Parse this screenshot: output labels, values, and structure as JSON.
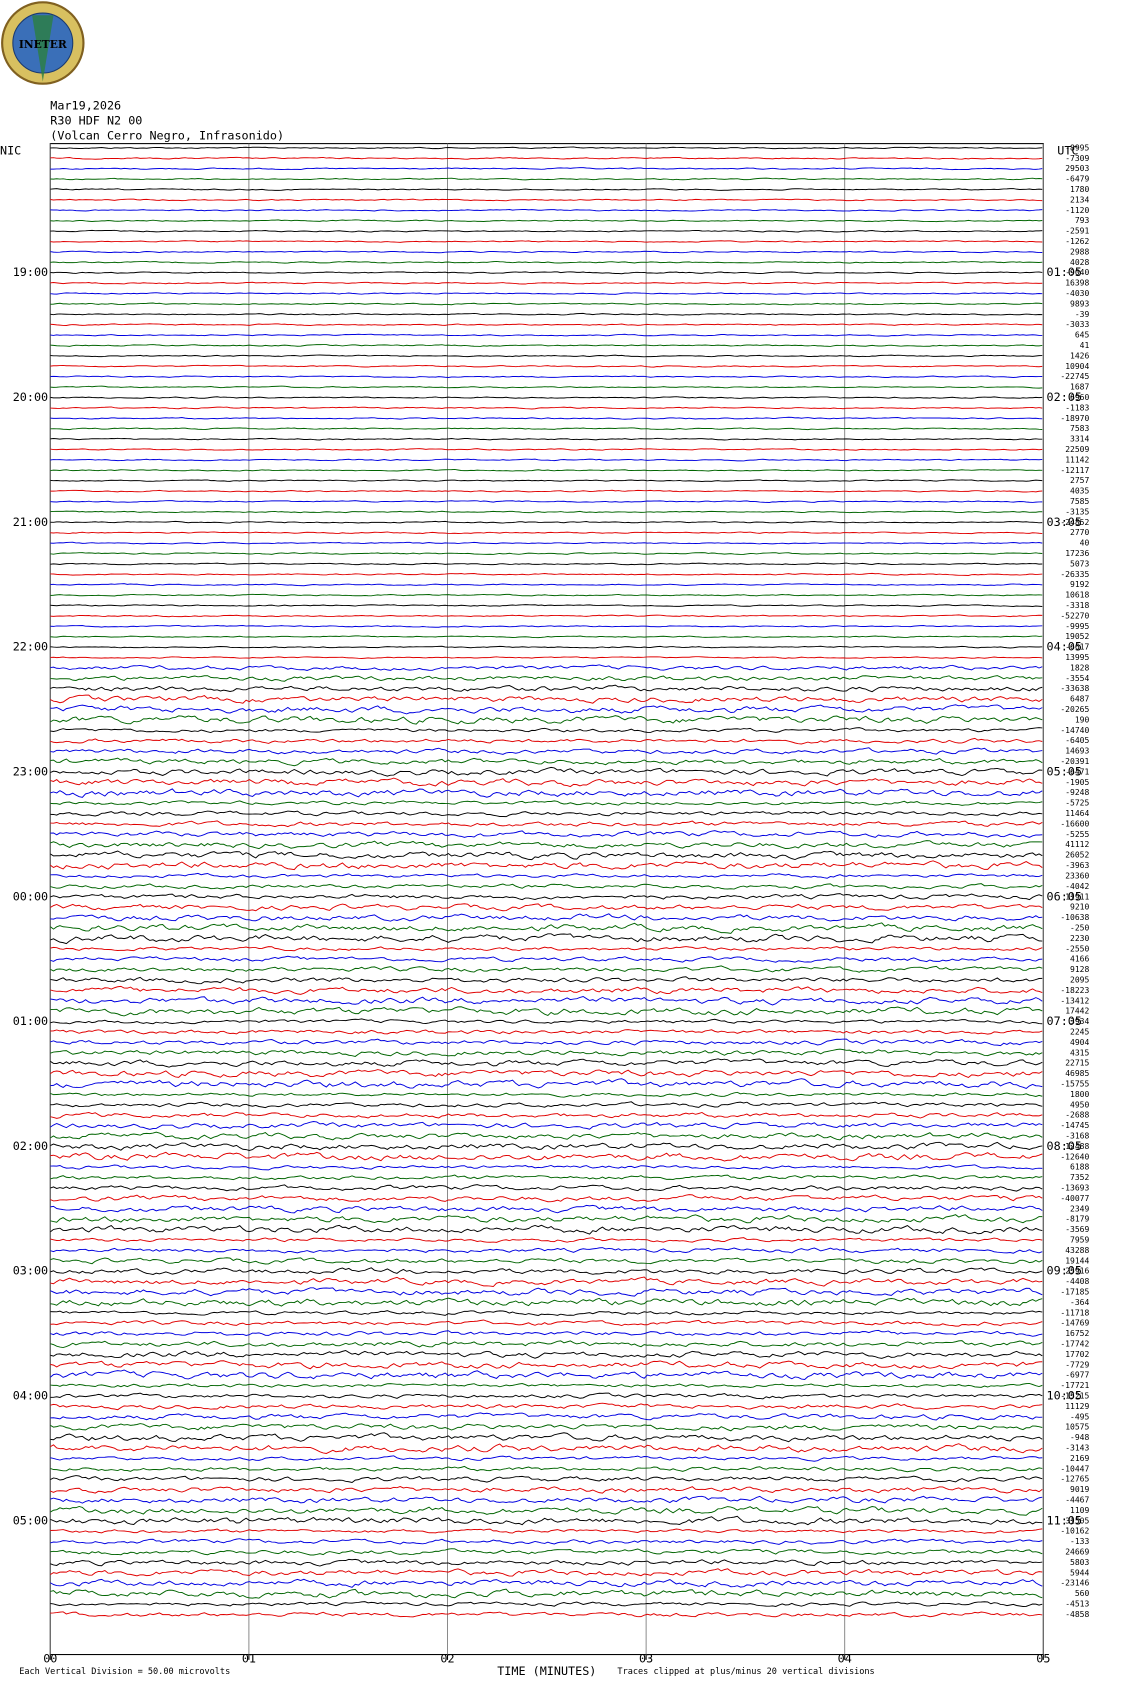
{
  "header": {
    "logo": "INETER",
    "date": "Mar19,2026",
    "station": "R30 HDF N2 00",
    "name": "(Volcan Cerro Negro, Infrasonido)"
  },
  "left_zone": "NIC",
  "right_zone": "UTC",
  "left_times": [
    "19:00",
    "20:00",
    "21:00",
    "22:00",
    "23:00",
    "00:00",
    "01:00",
    "02:00",
    "03:00",
    "04:00",
    "05:00"
  ],
  "right_times": [
    "01:05",
    "02:05",
    "03:05",
    "04:05",
    "05:05",
    "06:05",
    "07:05",
    "08:05",
    "09:05",
    "10:05",
    "11:05"
  ],
  "trace_colors": [
    "#000000",
    "#e00000",
    "#0000e0",
    "#006400"
  ],
  "offsets": [
    -8995,
    -7309,
    29503,
    -6479,
    1780,
    2134,
    -1120,
    793,
    -2591,
    -1262,
    2988,
    4028,
    -9040,
    16398,
    -4030,
    9893,
    -39,
    -3033,
    645,
    41,
    1426,
    10904,
    -22745,
    1687,
    6960,
    -1183,
    -18970,
    7583,
    3314,
    22509,
    11142,
    -12117,
    2757,
    4035,
    7585,
    -3135,
    -24852,
    2770,
    40,
    17236,
    5073,
    -26335,
    9192,
    10618,
    -3318,
    -52270,
    -9995,
    19052,
    -6617,
    13995,
    1828,
    -3554,
    -33638,
    6487,
    -20265,
    190,
    -14740,
    -6405,
    14693,
    -20391,
    -6471,
    -1905,
    -9248,
    -5725,
    11464,
    -16600,
    -5255,
    41112,
    26052,
    -3963,
    23360,
    -4042,
    11911,
    9210,
    -10638,
    -250,
    2230,
    -2550,
    4166,
    9128,
    2095,
    -18223,
    -13412,
    17442,
    3934,
    2245,
    4904,
    4315,
    22715,
    46985,
    -15755,
    1800,
    4950,
    -2688,
    -14745,
    -3168,
    12488,
    -12640,
    6188,
    7352,
    -13693,
    -40077,
    2349,
    -8179,
    -3569,
    7959,
    43288,
    19144,
    25916,
    -4408,
    -17185,
    -364,
    -11718,
    -14769,
    16752,
    -17742,
    17702,
    -7729,
    -6977,
    -17721,
    -15215,
    11129,
    -495,
    10575,
    -948,
    -3143,
    2169,
    -10447,
    -12765,
    9019,
    -4467,
    1109,
    31505,
    -10162,
    -133,
    24669,
    5803,
    5944,
    -23146,
    560,
    -4513,
    -4858
  ],
  "x_ticks": [
    "00",
    "01",
    "02",
    "03",
    "04",
    "05"
  ],
  "x_label": "TIME (MINUTES)",
  "footer_left": "Each Vertical Division = 50.00 microvolts",
  "footer_right": "Traces clipped at plus/minus 20 vertical divisions"
}
